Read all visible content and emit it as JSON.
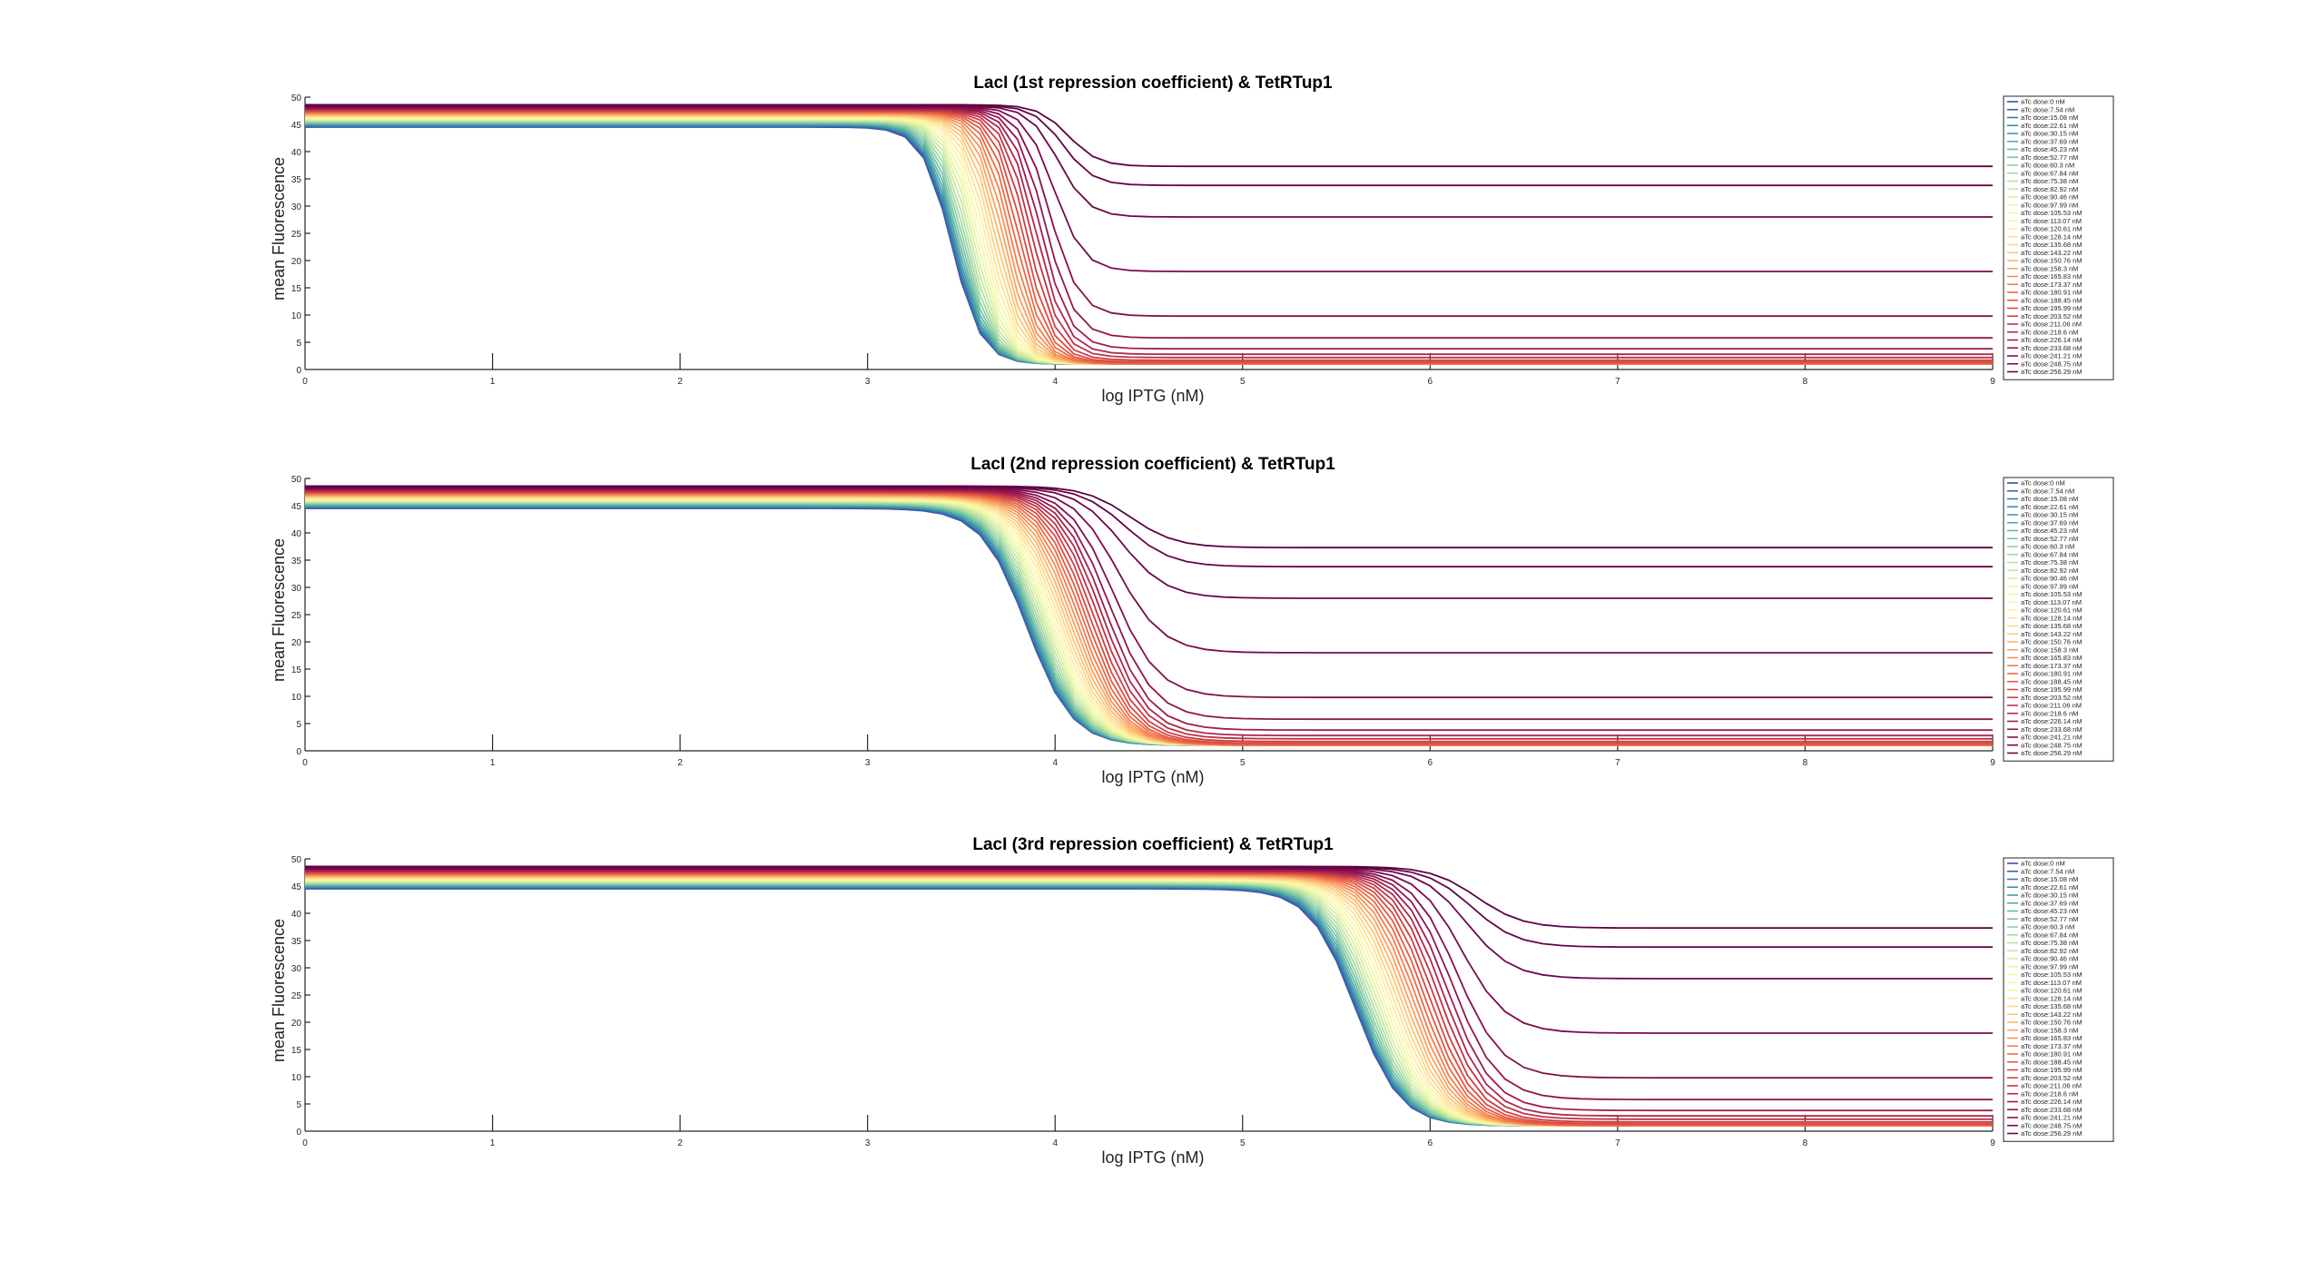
{
  "chart_data": [
    {
      "type": "line",
      "title": "LacI (1st repression coefficient) & TetRTup1",
      "xlabel": "log IPTG (nM)",
      "ylabel": "mean Fluorescence",
      "xlim": [
        0,
        9
      ],
      "ylim": [
        0,
        50
      ],
      "xticks": [
        "0",
        "1",
        "2",
        "3",
        "4",
        "5",
        "6",
        "7",
        "8",
        "9"
      ],
      "yticks": [
        "0",
        "5",
        "10",
        "15",
        "20",
        "25",
        "30",
        "35",
        "40",
        "45",
        "50"
      ],
      "grid": false,
      "legend": "right-outside",
      "curve": {
        "low_n": 3.45,
        "half_step": 0.62,
        "k": 5.5
      },
      "ymin_first": 44.5,
      "ymin_last": 48.6
    },
    {
      "type": "line",
      "title": "LacI (2nd repression coefficient) & TetRTup1",
      "xlabel": "log IPTG (nM)",
      "ylabel": "mean Fluorescence",
      "xlim": [
        0,
        9
      ],
      "ylim": [
        0,
        50
      ],
      "xticks": [
        "0",
        "1",
        "2",
        "3",
        "4",
        "5",
        "6",
        "7",
        "8",
        "9"
      ],
      "yticks": [
        "0",
        "5",
        "10",
        "15",
        "20",
        "25",
        "30",
        "35",
        "40",
        "45",
        "50"
      ],
      "grid": false,
      "legend": "right-outside",
      "curve": {
        "low_n": 3.85,
        "half_step": 0.55,
        "k": 3.6
      },
      "ymin_first": 44.5,
      "ymin_last": 48.6
    },
    {
      "type": "line",
      "title": "LacI (3rd repression coefficient) & TetRTup1",
      "xlabel": "log IPTG (nM)",
      "ylabel": "mean Fluorescence",
      "xlim": [
        0,
        9
      ],
      "ylim": [
        0,
        50
      ],
      "xticks": [
        "0",
        "1",
        "2",
        "3",
        "4",
        "5",
        "6",
        "7",
        "8",
        "9"
      ],
      "yticks": [
        "0",
        "5",
        "10",
        "15",
        "20",
        "25",
        "30",
        "35",
        "40",
        "45",
        "50"
      ],
      "grid": false,
      "legend": "right-outside",
      "curve": {
        "low_n": 5.6,
        "half_step": 0.65,
        "k": 3.6
      },
      "ymin_first": 44.5,
      "ymin_last": 48.6
    }
  ],
  "series": [
    {
      "name": "aTc dose:0 nM",
      "low": 1.0,
      "color": "#3b4fa0"
    },
    {
      "name": "aTc dose:7.54 nM",
      "low": 1.0,
      "color": "#3a62a8"
    },
    {
      "name": "aTc dose:15.08 nM",
      "low": 1.0,
      "color": "#3976b0"
    },
    {
      "name": "aTc dose:22.61 nM",
      "low": 1.0,
      "color": "#3b89b0"
    },
    {
      "name": "aTc dose:30.15 nM",
      "low": 1.0,
      "color": "#439aab"
    },
    {
      "name": "aTc dose:37.69 nM",
      "low": 1.0,
      "color": "#52aaa5"
    },
    {
      "name": "aTc dose:45.23 nM",
      "low": 1.0,
      "color": "#64b8a2"
    },
    {
      "name": "aTc dose:52.77 nM",
      "low": 1.0,
      "color": "#78c3a3"
    },
    {
      "name": "aTc dose:60.3 nM",
      "low": 1.0,
      "color": "#8dcea4"
    },
    {
      "name": "aTc dose:67.84 nM",
      "low": 1.0,
      "color": "#a2d8a4"
    },
    {
      "name": "aTc dose:75.38 nM",
      "low": 1.0,
      "color": "#b6e0a3"
    },
    {
      "name": "aTc dose:82.92 nM",
      "low": 1.0,
      "color": "#c8e8a0"
    },
    {
      "name": "aTc dose:90.46 nM",
      "low": 1.0,
      "color": "#d9ef9e"
    },
    {
      "name": "aTc dose:97.99 nM",
      "low": 1.0,
      "color": "#e8f59f"
    },
    {
      "name": "aTc dose:105.53 nM",
      "low": 1.0,
      "color": "#f3f8a6"
    },
    {
      "name": "aTc dose:113.07 nM",
      "low": 1.0,
      "color": "#fbf6ac"
    },
    {
      "name": "aTc dose:120.61 nM",
      "low": 1.0,
      "color": "#fdeea3"
    },
    {
      "name": "aTc dose:128.14 nM",
      "low": 1.0,
      "color": "#fee395"
    },
    {
      "name": "aTc dose:135.68 nM",
      "low": 1.0,
      "color": "#fed686"
    },
    {
      "name": "aTc dose:143.22 nM",
      "low": 1.0,
      "color": "#fdc678"
    },
    {
      "name": "aTc dose:150.76 nM",
      "low": 1.0,
      "color": "#fcb56b"
    },
    {
      "name": "aTc dose:158.3 nM",
      "low": 1.0,
      "color": "#faa260"
    },
    {
      "name": "aTc dose:165.83 nM",
      "low": 1.0,
      "color": "#f68f55"
    },
    {
      "name": "aTc dose:173.37 nM",
      "low": 1.0,
      "color": "#f17c4c"
    },
    {
      "name": "aTc dose:180.91 nM",
      "low": 1.1,
      "color": "#ea6a46"
    },
    {
      "name": "aTc dose:188.45 nM",
      "low": 1.2,
      "color": "#e25a43"
    },
    {
      "name": "aTc dose:195.99 nM",
      "low": 1.4,
      "color": "#d84b43"
    },
    {
      "name": "aTc dose:203.52 nM",
      "low": 1.7,
      "color": "#cc3e45"
    },
    {
      "name": "aTc dose:211.06 nM",
      "low": 2.2,
      "color": "#be3248"
    },
    {
      "name": "aTc dose:218.6 nM",
      "low": 2.8,
      "color": "#b0274b"
    },
    {
      "name": "aTc dose:226.14 nM",
      "low": 3.8,
      "color": "#a11d4d"
    },
    {
      "name": "aTc dose:233.68 nM",
      "low": 5.8,
      "color": "#93154e"
    },
    {
      "name": "aTc dose:241.21 nM",
      "low": 9.8,
      "color": "#860f4e"
    },
    {
      "name": "aTc dose:248.75 nM",
      "low": 18.0,
      "color": "#7a0a4c"
    },
    {
      "name": "aTc dose:256.29 nM",
      "low": 28.0,
      "color": "#6e064a"
    },
    {
      "name": "",
      "low": 33.8,
      "color": "#650447"
    },
    {
      "name": "",
      "low": 37.3,
      "color": "#5e0345"
    }
  ]
}
